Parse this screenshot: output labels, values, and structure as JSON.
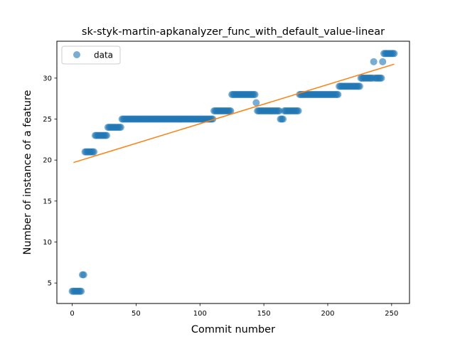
{
  "chart_data": {
    "type": "scatter",
    "title": "sk-styk-martin-apkanalyzer_func_with_default_value-linear",
    "xlabel": "Commit number",
    "ylabel": "Number of instance of a feature",
    "xlim": [
      -12,
      264
    ],
    "ylim": [
      2.5,
      34.5
    ],
    "xticks": [
      0,
      50,
      100,
      150,
      200,
      250
    ],
    "yticks": [
      5,
      10,
      15,
      20,
      25,
      30
    ],
    "grid": false,
    "legend": {
      "position": "top-left",
      "entries": [
        "data"
      ]
    },
    "colors": {
      "points": "#1f77b4",
      "fit": "#ff7f0e"
    },
    "series": [
      {
        "name": "data",
        "kind": "points",
        "runs": [
          [
            0,
            8,
            4
          ],
          [
            8,
            10,
            6
          ],
          [
            10,
            18,
            21
          ],
          [
            18,
            28,
            23
          ],
          [
            28,
            39,
            24
          ],
          [
            39,
            111,
            25
          ],
          [
            111,
            125,
            26
          ],
          [
            125,
            144,
            28
          ],
          [
            144,
            145,
            27
          ],
          [
            145,
            163,
            26
          ],
          [
            163,
            166,
            25
          ],
          [
            166,
            178,
            26
          ],
          [
            178,
            209,
            28
          ],
          [
            209,
            226,
            29
          ],
          [
            226,
            236,
            30
          ],
          [
            236,
            237,
            32
          ],
          [
            237,
            243,
            30
          ],
          [
            243,
            244,
            32
          ],
          [
            244,
            253,
            33
          ]
        ]
      },
      {
        "kind": "line",
        "x": [
          1,
          252
        ],
        "y": [
          19.7,
          31.7
        ]
      }
    ]
  }
}
